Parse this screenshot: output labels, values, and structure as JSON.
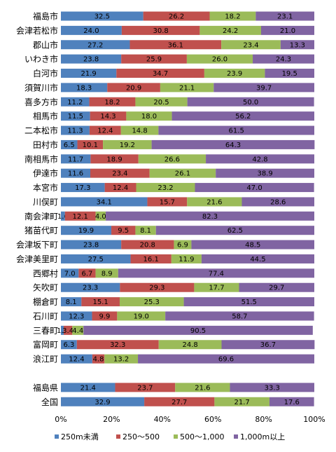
{
  "chart_data": {
    "type": "bar",
    "orientation": "horizontal",
    "stacked": true,
    "percent_stacked": true,
    "categories": [
      "福島市",
      "会津若松市",
      "郡山市",
      "いわき市",
      "白河市",
      "須賀川市",
      "喜多方市",
      "相馬市",
      "二本松市",
      "田村市",
      "南相馬市",
      "伊達市",
      "本宮市",
      "川俣町",
      "南会津町",
      "猪苗代町",
      "会津坂下町",
      "会津美里町",
      "西郷村",
      "矢吹町",
      "棚倉町",
      "石川町",
      "三春町",
      "富岡町",
      "浪江町",
      "",
      "福島県",
      "全国"
    ],
    "series": [
      {
        "name": "250m未満",
        "color": "#4f81bd",
        "values": [
          32.5,
          24.0,
          27.2,
          23.8,
          21.9,
          18.3,
          11.2,
          11.5,
          11.3,
          6.5,
          11.7,
          11.6,
          17.3,
          34.1,
          1.6,
          19.9,
          23.8,
          27.5,
          7.0,
          23.3,
          8.1,
          12.3,
          1.1,
          6.3,
          12.4,
          null,
          21.4,
          32.9
        ]
      },
      {
        "name": "250～500",
        "color": "#c0504d",
        "values": [
          26.2,
          30.8,
          36.1,
          25.9,
          34.7,
          20.9,
          18.2,
          14.3,
          12.4,
          10.1,
          18.9,
          23.4,
          12.4,
          15.7,
          12.1,
          9.5,
          20.8,
          16.1,
          6.7,
          29.3,
          15.1,
          9.9,
          3.4,
          32.3,
          4.8,
          null,
          23.7,
          27.7
        ]
      },
      {
        "name": "500～1,000",
        "color": "#9bbb59",
        "values": [
          18.2,
          24.2,
          23.4,
          26.0,
          23.9,
          21.1,
          20.5,
          18.0,
          14.8,
          19.2,
          26.6,
          26.1,
          23.2,
          21.6,
          4.0,
          8.1,
          6.9,
          11.9,
          8.9,
          17.7,
          25.3,
          19.0,
          4.4,
          24.8,
          13.2,
          null,
          21.6,
          21.7
        ]
      },
      {
        "name": "1,000m以上",
        "color": "#8064a2",
        "values": [
          23.1,
          21.0,
          13.3,
          24.3,
          19.5,
          39.7,
          50.0,
          56.2,
          61.5,
          64.3,
          42.8,
          38.9,
          47.0,
          28.6,
          82.3,
          62.5,
          48.5,
          44.5,
          77.4,
          29.7,
          51.5,
          58.7,
          90.5,
          36.7,
          69.6,
          null,
          33.3,
          17.6
        ]
      }
    ],
    "value_labels": [
      [
        "32.5",
        "26.2",
        "18.2",
        "23.1"
      ],
      [
        "24.0",
        "30.8",
        "24.2",
        "21.0"
      ],
      [
        "27.2",
        "36.1",
        "23.4",
        "13.3"
      ],
      [
        "23.8",
        "25.9",
        "26.0",
        "24.3"
      ],
      [
        "21.9",
        "34.7",
        "23.9",
        "19.5"
      ],
      [
        "18.3",
        "20.9",
        "21.1",
        "39.7"
      ],
      [
        "11.2",
        "18.2",
        "20.5",
        "50.0"
      ],
      [
        "11.5",
        "14.3",
        "18.0",
        "56.2"
      ],
      [
        "11.3",
        "12.4",
        "14.8",
        "61.5"
      ],
      [
        "6.5",
        "10.1",
        "19.2",
        "64.3"
      ],
      [
        "11.7",
        "18.9",
        "26.6",
        "42.8"
      ],
      [
        "11.6",
        "23.4",
        "26.1",
        "38.9"
      ],
      [
        "17.3",
        "12.4",
        "23.2",
        "47.0"
      ],
      [
        "34.1",
        "15.7",
        "21.6",
        "28.6"
      ],
      [
        "1.6",
        "12.1",
        "4.0",
        "82.3"
      ],
      [
        "19.9",
        "9.5",
        "8.1",
        "62.5"
      ],
      [
        "23.8",
        "20.8",
        "6.9",
        "48.5"
      ],
      [
        "27.5",
        "16.1",
        "11.9",
        "44.5"
      ],
      [
        "7.0",
        "6.7",
        "8.9",
        "77.4"
      ],
      [
        "23.3",
        "29.3",
        "17.7",
        "29.7"
      ],
      [
        "8.1",
        "15.1",
        "25.3",
        "51.5"
      ],
      [
        "12.3",
        "9.9",
        "19.0",
        "58.7"
      ],
      [
        "1.1",
        "3.4",
        "4.4",
        "90.5"
      ],
      [
        "6.3",
        "32.3",
        "24.8",
        "36.7"
      ],
      [
        "12.4",
        "4.8",
        "13.2",
        "69.6"
      ],
      [
        "",
        "",
        "",
        ""
      ],
      [
        "21.4",
        "23.7",
        "21.6",
        "33.3"
      ],
      [
        "32.9",
        "27.7",
        "21.7",
        "17.6"
      ]
    ],
    "xlim": [
      0,
      100
    ],
    "xticks": [
      "0%",
      "20%",
      "40%",
      "60%",
      "80%",
      "100%"
    ],
    "legend_position": "bottom",
    "grid": false
  }
}
